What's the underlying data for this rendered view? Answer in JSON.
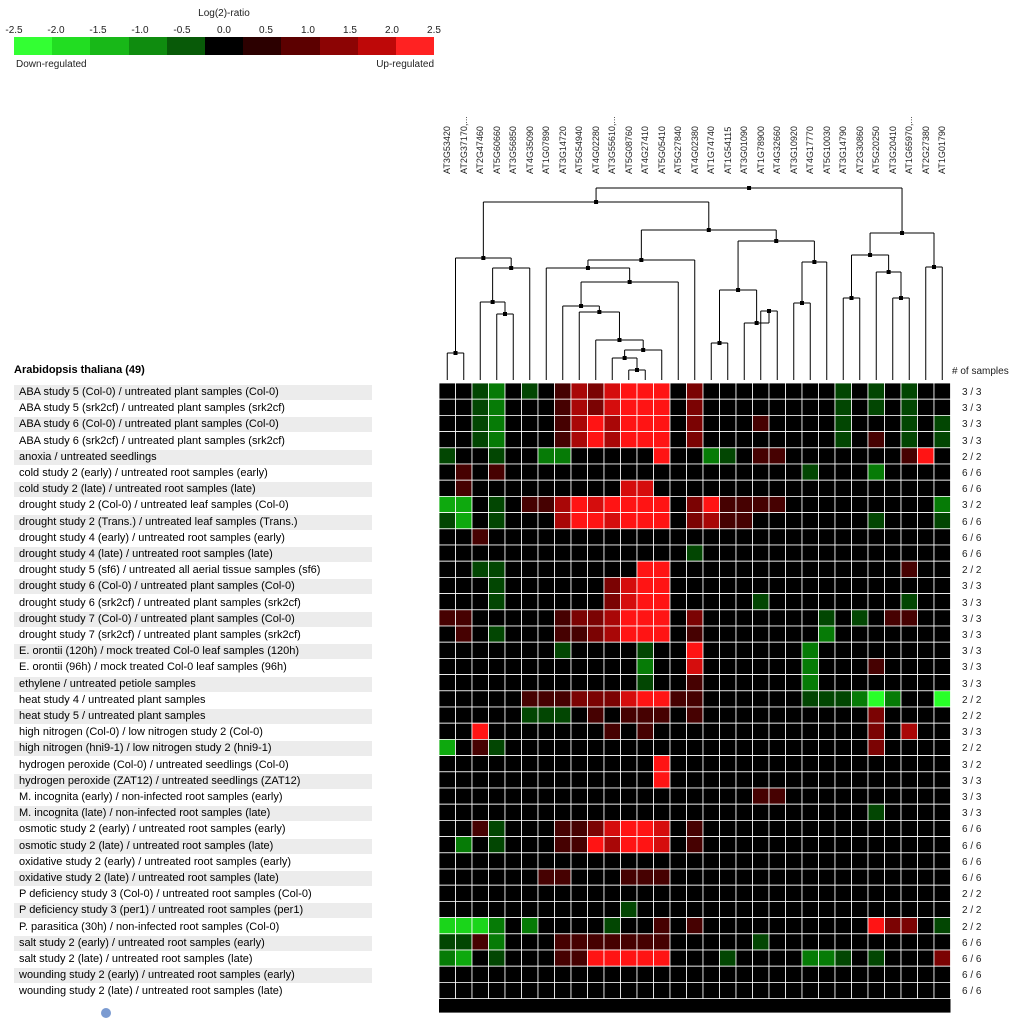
{
  "chart_data": {
    "type": "heatmap",
    "legend": {
      "title": "Log(2)-ratio",
      "ticks": [
        "-2.5",
        "-2.0",
        "-1.5",
        "-1.0",
        "-0.5",
        "0.0",
        "0.5",
        "1.0",
        "1.5",
        "2.0",
        "2.5"
      ],
      "left_label": "Down-regulated",
      "right_label": "Up-regulated",
      "colors": [
        "#33ff33",
        "#22dd22",
        "#18b818",
        "#0f8c0f",
        "#085a08",
        "#000000",
        "#2c0000",
        "#5c0000",
        "#8c0404",
        "#be0808",
        "#ff2222"
      ]
    },
    "species_label": "Arabidopsis thaliana (49)",
    "samples_header": "# of samples",
    "columns": [
      "AT3G53420",
      "AT2G37170,...",
      "AT2G47460",
      "AT5G60660",
      "AT3G56850",
      "AT4G35090",
      "AT1G07890",
      "AT3G14720",
      "AT5G54940",
      "AT4G02280",
      "AT3G55610,...",
      "AT5G08760",
      "AT4G27410",
      "AT5G05410",
      "AT5G27840",
      "AT4G02380",
      "AT1G74740",
      "AT1G54115",
      "AT3G01090",
      "AT1G78900",
      "AT4G32660",
      "AT3G10920",
      "AT4G17770",
      "AT5G10030",
      "AT3G14790",
      "AT2G30860",
      "AT5G20250",
      "AT3G20410",
      "AT1G65970,...",
      "AT2G27380",
      "AT1G01790"
    ],
    "rows": [
      "ABA study 5 (Col-0) / untreated plant samples (Col-0)",
      "ABA study 5 (srk2cf) / untreated plant samples (srk2cf)",
      "ABA study 6 (Col-0) / untreated plant samples (Col-0)",
      "ABA study 6 (srk2cf) / untreated plant samples (srk2cf)",
      "anoxia / untreated seedlings",
      "cold study 2 (early) / untreated root samples (early)",
      "cold study 2 (late) / untreated root samples (late)",
      "drought study 2 (Col-0) / untreated leaf samples (Col-0)",
      "drought study 2 (Trans.) / untreated leaf samples (Trans.)",
      "drought study 4 (early) / untreated root samples (early)",
      "drought study 4 (late) / untreated root samples (late)",
      "drought study 5 (sf6) / untreated all aerial tissue samples (sf6)",
      "drought study 6 (Col-0) / untreated plant samples (Col-0)",
      "drought study 6 (srk2cf) / untreated plant samples (srk2cf)",
      "drought study 7 (Col-0) / untreated plant samples (Col-0)",
      "drought study 7 (srk2cf) / untreated plant samples (srk2cf)",
      "E. orontii (120h) / mock treated Col-0 leaf samples (120h)",
      "E. orontii (96h) / mock treated Col-0 leaf samples (96h)",
      "ethylene / untreated petiole samples",
      "heat study 4 / untreated plant samples",
      "heat study 5 / untreated plant samples",
      "high nitrogen (Col-0) / low nitrogen study 2 (Col-0)",
      "high nitrogen (hni9-1) / low nitrogen study 2 (hni9-1)",
      "hydrogen peroxide (Col-0) / untreated seedlings (Col-0)",
      "hydrogen peroxide (ZAT12) / untreated seedlings (ZAT12)",
      "M. incognita (early) / non-infected root samples (early)",
      "M. incognita (late) / non-infected root samples (late)",
      "osmotic study 2 (early) / untreated root samples (early)",
      "osmotic study 2 (late) / untreated root samples (late)",
      "oxidative study 2 (early) / untreated root samples (early)",
      "oxidative study 2 (late) / untreated root samples (late)",
      "P deficiency study 3 (Col-0) / untreated root samples (Col-0)",
      "P deficiency study 3 (per1) / untreated root samples (per1)",
      "P. parasitica (30h) / non-infected root samples (Col-0)",
      "salt study 2 (early) / untreated root samples (early)",
      "salt study 2 (late) / untreated root samples (late)",
      "wounding study 2 (early) / untreated root samples (early)",
      "wounding study 2 (late) / untreated root samples (late)"
    ],
    "samples": [
      "3 / 3",
      "3 / 3",
      "3 / 3",
      "3 / 3",
      "2 / 2",
      "6 / 6",
      "6 / 6",
      "3 / 2",
      "6 / 6",
      "6 / 6",
      "6 / 6",
      "2 / 2",
      "3 / 3",
      "3 / 3",
      "3 / 3",
      "3 / 3",
      "3 / 3",
      "3 / 3",
      "3 / 3",
      "2 / 2",
      "2 / 2",
      "3 / 3",
      "2 / 2",
      "3 / 2",
      "3 / 3",
      "3 / 3",
      "3 / 3",
      "6 / 6",
      "6 / 6",
      "6 / 6",
      "6 / 6",
      "2 / 2",
      "2 / 2",
      "2 / 2",
      "6 / 6",
      "6 / 6",
      "6 / 6",
      "6 / 6"
    ],
    "values": [
      [
        0,
        0,
        -0.5,
        -1,
        0,
        -0.5,
        0,
        0.5,
        1.5,
        1,
        2,
        2.5,
        2.5,
        2.5,
        0,
        1,
        0,
        0,
        0,
        0,
        0,
        0,
        0,
        0,
        -0.5,
        0,
        -0.5,
        0,
        -0.5,
        0,
        0
      ],
      [
        0,
        0,
        -0.5,
        -1,
        0,
        0,
        0,
        0.5,
        1.5,
        1,
        2,
        2.5,
        2.5,
        2.5,
        0,
        1,
        0,
        0,
        0,
        0,
        0,
        0,
        0,
        0,
        -0.5,
        0,
        -0.5,
        0,
        -0.5,
        0,
        0
      ],
      [
        0,
        0,
        -0.5,
        -1,
        0,
        0,
        0,
        0.5,
        1.5,
        2.5,
        1.5,
        2.5,
        2.5,
        2.5,
        0,
        1,
        0,
        0,
        0,
        0.5,
        0,
        0,
        0,
        0,
        -0.5,
        0,
        0,
        0,
        -0.5,
        0,
        -0.5
      ],
      [
        0,
        0,
        -0.5,
        -1,
        0,
        0,
        0,
        0.5,
        1.5,
        2.5,
        1.5,
        2.5,
        2.5,
        2.5,
        0,
        1,
        0,
        0,
        0,
        0,
        0,
        0,
        0,
        0,
        -0.5,
        0,
        0.5,
        0,
        -0.5,
        0,
        -0.5
      ],
      [
        -0.5,
        0,
        0,
        -0.5,
        0,
        0,
        -1,
        -1,
        0,
        0,
        0,
        0,
        0,
        2.5,
        0,
        0,
        -1,
        -0.5,
        0,
        0.5,
        0.5,
        0,
        0,
        0,
        0,
        0,
        0,
        0,
        0.5,
        2.5,
        0
      ],
      [
        0,
        0.5,
        0,
        0.5,
        0,
        0,
        0,
        0,
        0,
        0,
        0,
        0,
        0,
        0,
        0,
        0,
        0,
        0,
        0,
        0,
        0,
        0,
        -0.5,
        0,
        0,
        0,
        -1,
        0,
        0,
        0,
        0
      ],
      [
        0,
        0.5,
        0,
        0,
        0,
        0,
        0,
        0,
        0,
        0,
        0,
        2,
        2,
        0,
        0,
        0,
        0,
        0,
        0,
        0,
        0,
        0,
        0,
        0,
        0,
        0,
        0,
        0,
        0,
        0,
        0
      ],
      [
        -1.5,
        -1.5,
        0,
        -0.5,
        0,
        0.5,
        0.5,
        1.5,
        2.5,
        2,
        2.5,
        2.5,
        2.5,
        2.5,
        0,
        1,
        2.5,
        0.5,
        0.5,
        0.5,
        0.5,
        0,
        0,
        0,
        0,
        0,
        0,
        0,
        0,
        0,
        -1
      ],
      [
        -0.5,
        -1.5,
        0,
        -0.5,
        0,
        0,
        0,
        1.5,
        2.5,
        2.5,
        2,
        2.5,
        2.5,
        2.5,
        0,
        1,
        1.5,
        0.5,
        0.5,
        0,
        0,
        0,
        0,
        0,
        0,
        0,
        -0.5,
        0,
        0,
        0,
        -0.5
      ],
      [
        0,
        0,
        0.5,
        0,
        0,
        0,
        0,
        0,
        0,
        0,
        0,
        0,
        0,
        0,
        0,
        0,
        0,
        0,
        0,
        0,
        0,
        0,
        0,
        0,
        0,
        0,
        0,
        0,
        0,
        0,
        0
      ],
      [
        0,
        0,
        0,
        0,
        0,
        0,
        0,
        0,
        0,
        0,
        0,
        0,
        0,
        0,
        0,
        -0.5,
        0,
        0,
        0,
        0,
        0,
        0,
        0,
        0,
        0,
        0,
        0,
        0,
        0,
        0,
        0
      ],
      [
        0,
        0,
        -0.5,
        -0.5,
        0,
        0,
        0,
        0,
        0,
        0,
        0,
        0,
        2.5,
        2.5,
        0,
        0,
        0,
        0,
        0,
        0,
        0,
        0,
        0,
        0,
        0,
        0,
        0,
        0,
        0.5,
        0,
        0
      ],
      [
        0,
        0,
        0,
        -0.5,
        0,
        0,
        0,
        0,
        0,
        0,
        1,
        2,
        2.5,
        2.5,
        0,
        0,
        0,
        0,
        0,
        0,
        0,
        0,
        0,
        0,
        0,
        0,
        0,
        0,
        0,
        0,
        0
      ],
      [
        0,
        0,
        0,
        -0.5,
        0,
        0,
        0,
        0,
        0,
        0,
        1,
        2,
        2.5,
        2.5,
        0,
        0,
        0,
        0,
        0,
        -0.5,
        0,
        0,
        0,
        0,
        0,
        0,
        0,
        0,
        -0.5,
        0,
        0
      ],
      [
        0.5,
        0.5,
        0,
        0,
        0,
        0,
        0,
        0.5,
        1,
        1,
        1.5,
        2.5,
        2.5,
        2.5,
        0,
        1,
        0,
        0,
        0,
        0,
        0,
        0,
        0,
        -0.5,
        0,
        -0.5,
        0,
        0.5,
        0.5,
        0,
        0
      ],
      [
        0,
        0.5,
        0,
        -0.5,
        0,
        0,
        0,
        0.5,
        0.5,
        1,
        1.5,
        2.5,
        2.5,
        2.5,
        0,
        0.5,
        0,
        0,
        0,
        0,
        0,
        0,
        0,
        -1,
        0,
        0,
        0,
        0,
        0,
        0,
        0
      ],
      [
        0,
        0,
        0,
        0,
        0,
        0,
        0,
        -0.5,
        0,
        0,
        0,
        0,
        -0.5,
        0,
        0,
        2.5,
        0,
        0,
        0,
        0,
        0,
        0,
        -1,
        0,
        0,
        0,
        0,
        0,
        0,
        0,
        0
      ],
      [
        0,
        0,
        0,
        0,
        0,
        0,
        0,
        0,
        0,
        0,
        0,
        0,
        -1,
        0,
        0,
        2,
        0,
        0,
        0,
        0,
        0,
        0,
        -1,
        0,
        0,
        0,
        0.5,
        0,
        0,
        0,
        0
      ],
      [
        0,
        0,
        0,
        0,
        0,
        0,
        0,
        0,
        0,
        0,
        0,
        0,
        -0.5,
        0,
        0,
        0.5,
        0,
        0,
        0,
        0,
        0,
        0,
        -1,
        0,
        0,
        0,
        0,
        0,
        0,
        0,
        0
      ],
      [
        0,
        0,
        0,
        0,
        0,
        0.5,
        0.5,
        0.5,
        1,
        1,
        1,
        2,
        2.5,
        2.5,
        0.5,
        0.5,
        0,
        0,
        0,
        0,
        0,
        0,
        -0.5,
        -0.5,
        -0.5,
        -1,
        -2.5,
        -1,
        0,
        0,
        -2.5
      ],
      [
        0,
        0,
        0,
        0,
        0,
        -0.5,
        -0.5,
        -0.5,
        0,
        0.5,
        0,
        0.5,
        0.5,
        0.5,
        0,
        0.5,
        0,
        0,
        0,
        0,
        0,
        0,
        0,
        0,
        0,
        0,
        1,
        0,
        0,
        0,
        0
      ],
      [
        0,
        0,
        2.5,
        0,
        0,
        0,
        0,
        0,
        0,
        0,
        0.5,
        0,
        0.5,
        0,
        0,
        0,
        0,
        0,
        0,
        0,
        0,
        0,
        0,
        0,
        0,
        0,
        1,
        0,
        1.5,
        0,
        0
      ],
      [
        -1.5,
        0,
        0.5,
        -0.5,
        0,
        0,
        0,
        0,
        0,
        0,
        0,
        0,
        0,
        0,
        0,
        0,
        0,
        0,
        0,
        0,
        0,
        0,
        0,
        0,
        0,
        0,
        1,
        0,
        0,
        0,
        0
      ],
      [
        0,
        0,
        0,
        0,
        0,
        0,
        0,
        0,
        0,
        0,
        0,
        0,
        0,
        2.5,
        0,
        0,
        0,
        0,
        0,
        0,
        0,
        0,
        0,
        0,
        0,
        0,
        0,
        0,
        0,
        0,
        0
      ],
      [
        0,
        0,
        0,
        0,
        0,
        0,
        0,
        0,
        0,
        0,
        0,
        0,
        0,
        2.5,
        0,
        0,
        0,
        0,
        0,
        0,
        0,
        0,
        0,
        0,
        0,
        0,
        0,
        0,
        0,
        0,
        0
      ],
      [
        0,
        0,
        0,
        0,
        0,
        0,
        0,
        0,
        0,
        0,
        0,
        0,
        0,
        0,
        0,
        0,
        0,
        0,
        0,
        0.5,
        0.5,
        0,
        0,
        0,
        0,
        0,
        0,
        0,
        0,
        0,
        0
      ],
      [
        0,
        0,
        0,
        0,
        0,
        0,
        0,
        0,
        0,
        0,
        0,
        0,
        0,
        0,
        0,
        0,
        0,
        0,
        0,
        0,
        0,
        0,
        0,
        0,
        0,
        0,
        -0.5,
        0,
        0,
        0,
        0
      ],
      [
        0,
        0,
        0.5,
        -0.5,
        0,
        0,
        0,
        0.5,
        0.5,
        1,
        2,
        2.5,
        2.5,
        2,
        0,
        0.5,
        0,
        0,
        0,
        0,
        0,
        0,
        0,
        0,
        0,
        0,
        0,
        0,
        0,
        0,
        0
      ],
      [
        0,
        -1,
        0,
        -0.5,
        0,
        0,
        0,
        0.5,
        0.5,
        2.5,
        1.5,
        2.5,
        2.5,
        2,
        0,
        0.5,
        0,
        0,
        0,
        0,
        0,
        0,
        0,
        0,
        0,
        0,
        0,
        0,
        0,
        0,
        0
      ],
      [
        0,
        0,
        0,
        0,
        0,
        0,
        0,
        0,
        0,
        0,
        0,
        0,
        0,
        0,
        0,
        0,
        0,
        0,
        0,
        0,
        0,
        0,
        0,
        0,
        0,
        0,
        0,
        0,
        0,
        0,
        0
      ],
      [
        0,
        0,
        0,
        0,
        0,
        0,
        0.5,
        0.5,
        0,
        0,
        0,
        0.5,
        0.5,
        0.5,
        0,
        0,
        0,
        0,
        0,
        0,
        0,
        0,
        0,
        0,
        0,
        0,
        0,
        0,
        0,
        0,
        0
      ],
      [
        0,
        0,
        0,
        0,
        0,
        0,
        0,
        0,
        0,
        0,
        0,
        0,
        0,
        0,
        0,
        0,
        0,
        0,
        0,
        0,
        0,
        0,
        0,
        0,
        0,
        0,
        0,
        0,
        0,
        0,
        0
      ],
      [
        0,
        0,
        0,
        0,
        0,
        0,
        0,
        0,
        0,
        0,
        0,
        -0.5,
        0,
        0,
        0,
        0,
        0,
        0,
        0,
        0,
        0,
        0,
        0,
        0,
        0,
        0,
        0,
        0,
        0,
        0,
        0
      ],
      [
        -2,
        -2,
        -2,
        -1,
        0,
        -1,
        0,
        0,
        0,
        0,
        -0.5,
        0,
        0,
        0.5,
        0,
        0.5,
        0,
        0,
        0,
        0,
        0,
        0,
        0,
        0,
        0,
        0,
        2.5,
        1,
        1,
        0,
        -0.5
      ],
      [
        -0.5,
        -0.5,
        0.5,
        -1,
        0,
        0,
        0,
        0.5,
        0.5,
        0.5,
        0.5,
        0.5,
        0.5,
        0.5,
        0,
        0,
        0,
        0,
        0,
        -0.5,
        0,
        0,
        0,
        0,
        0,
        0,
        0,
        0,
        0,
        0,
        0
      ],
      [
        -1,
        -1.5,
        0,
        -0.5,
        0,
        0,
        0,
        0.5,
        0.5,
        2.5,
        2.5,
        2.5,
        2.5,
        2.5,
        0,
        0,
        0,
        -0.5,
        0,
        0,
        0,
        0,
        -1,
        -1,
        -0.5,
        0,
        -0.5,
        0,
        0,
        0,
        1
      ],
      [
        0,
        0,
        0,
        0,
        0,
        0,
        0,
        0,
        0,
        0,
        0,
        0,
        0,
        0,
        0,
        0,
        0,
        0,
        0,
        0,
        0,
        0,
        0,
        0,
        0,
        0,
        0,
        0,
        0,
        0,
        0
      ],
      [
        0,
        0,
        0,
        0,
        0,
        0,
        0,
        0,
        0,
        0,
        0,
        0,
        0,
        0,
        0,
        0,
        0,
        0,
        0,
        0,
        0,
        0,
        0,
        0,
        0,
        0,
        0,
        0,
        0,
        0,
        0
      ]
    ],
    "clim": [
      -2.5,
      2.5
    ]
  }
}
